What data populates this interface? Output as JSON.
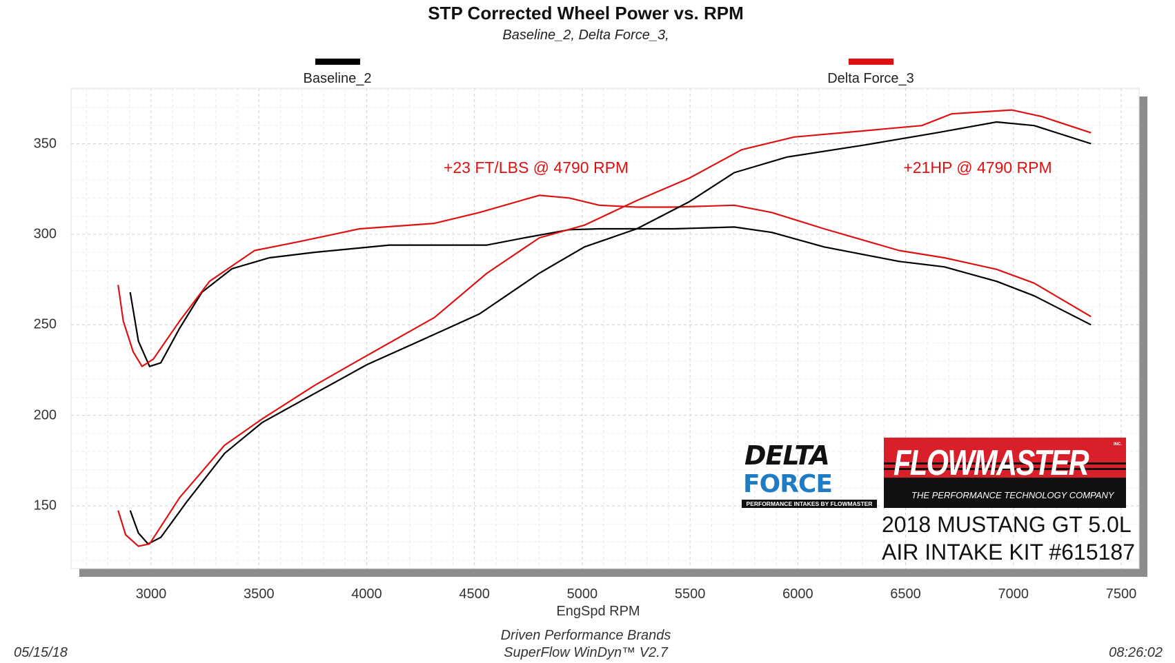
{
  "chart_data": {
    "type": "line",
    "title": "STP Corrected Wheel Power vs. RPM",
    "subtitle": "Baseline_2, Delta Force_3,",
    "xlabel": "EngSpd  RPM",
    "ylabel": "",
    "xlim": [
      2628,
      7583
    ],
    "ylim": [
      115,
      381
    ],
    "x_ticks": [
      "3000",
      "3500",
      "4000",
      "4500",
      "5000",
      "5500",
      "6000",
      "6500",
      "7000",
      "7500"
    ],
    "y_ticks": [
      "150",
      "200",
      "250",
      "300",
      "350"
    ],
    "grid": true,
    "legend": {
      "placement": "top",
      "entries": [
        "Baseline_2",
        "Delta Force_3"
      ]
    },
    "series": [
      {
        "name": "Baseline_2",
        "color": "#000000",
        "curve": "torque",
        "x": [
          2903,
          2941,
          2993,
          3045,
          3132,
          3236,
          3376,
          3549,
          3758,
          3932,
          4106,
          4384,
          4558,
          4732,
          4940,
          5079,
          5427,
          5705,
          5879,
          6122,
          6470,
          6679,
          6922,
          7096,
          7360
        ],
        "y": [
          268,
          241,
          227,
          229,
          248,
          268,
          281,
          287,
          290,
          292,
          294,
          294,
          294,
          298,
          302.5,
          303,
          303,
          304,
          301,
          293,
          285,
          282,
          274,
          266,
          250
        ]
      },
      {
        "name": "Delta Force_3",
        "color": "#dd1111",
        "curve": "torque",
        "x": [
          2847,
          2871,
          2917,
          2958,
          3010,
          3132,
          3271,
          3480,
          3689,
          3967,
          4314,
          4523,
          4801,
          4940,
          5079,
          5253,
          5427,
          5705,
          5879,
          6122,
          6470,
          6679,
          6922,
          7096,
          7360
        ],
        "y": [
          272,
          252,
          235,
          227,
          231,
          252,
          274,
          291,
          296,
          303,
          306,
          312,
          321.5,
          320,
          316,
          315,
          315,
          316,
          312,
          303,
          291,
          287,
          280.6,
          273,
          254.5
        ]
      },
      {
        "name": "Baseline_2",
        "color": "#000000",
        "curve": "power",
        "x": [
          2903,
          2941,
          2986,
          3045,
          3167,
          3341,
          3515,
          3758,
          4001,
          4245,
          4523,
          4801,
          5010,
          5253,
          5497,
          5705,
          5949,
          6296,
          6644,
          6922,
          7096,
          7360
        ],
        "y": [
          147.5,
          135,
          129,
          132.6,
          152.5,
          179,
          196,
          212,
          228,
          241,
          256,
          278.5,
          293,
          303,
          318,
          334,
          342.6,
          349,
          356,
          362,
          360,
          350
        ]
      },
      {
        "name": "Delta Force_3",
        "color": "#dd1111",
        "curve": "power",
        "x": [
          2847,
          2882,
          2941,
          2993,
          3132,
          3341,
          3515,
          3758,
          4001,
          4314,
          4558,
          4801,
          5010,
          5253,
          5497,
          5740,
          5983,
          6296,
          6575,
          6714,
          6992,
          7131,
          7360
        ],
        "y": [
          147.5,
          134,
          127.7,
          129,
          154.5,
          183.5,
          198,
          216.5,
          233,
          254,
          278.5,
          298,
          305,
          318.6,
          331,
          346.7,
          353.7,
          357,
          360,
          366.5,
          368.6,
          365,
          356
        ]
      }
    ],
    "annotations": [
      "+23 FT/LBS @ 4790 RPM",
      "+21HP @ 4790 RPM"
    ]
  },
  "logos": {
    "delta_force": {
      "line1": "DELTA",
      "line2": "FORCE",
      "tagline": "PERFORMANCE INTAKES BY FLOWMASTER"
    },
    "flowmaster": {
      "name": "FLOWMASTER",
      "inc": "INC.",
      "tagline": "THE PERFORMANCE TECHNOLOGY COMPANY"
    }
  },
  "vehicle": {
    "line1": "2018 MUSTANG GT 5.0L",
    "line2": "AIR INTAKE KIT #615187"
  },
  "footer": {
    "company": "Driven Performance Brands",
    "software": "SuperFlow WinDyn™  V2.7",
    "date": "05/15/18",
    "time": "08:26:02"
  }
}
